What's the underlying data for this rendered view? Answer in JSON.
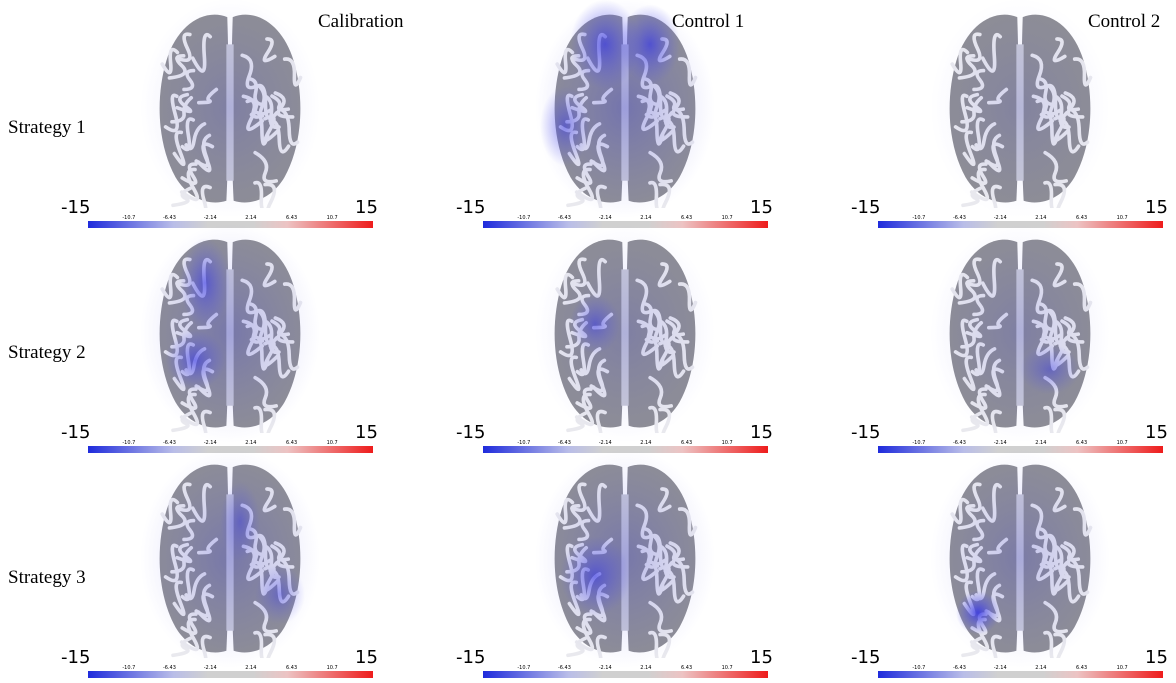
{
  "columns": [
    "Calibration",
    "Control 1",
    "Control 2"
  ],
  "rows": [
    "Strategy 1",
    "Strategy 2",
    "Strategy 3"
  ],
  "colorbar": {
    "min": -15,
    "max": 15,
    "ticks": [
      -10.7,
      -6.43,
      -2.14,
      2.14,
      6.43,
      10.7
    ]
  }
}
